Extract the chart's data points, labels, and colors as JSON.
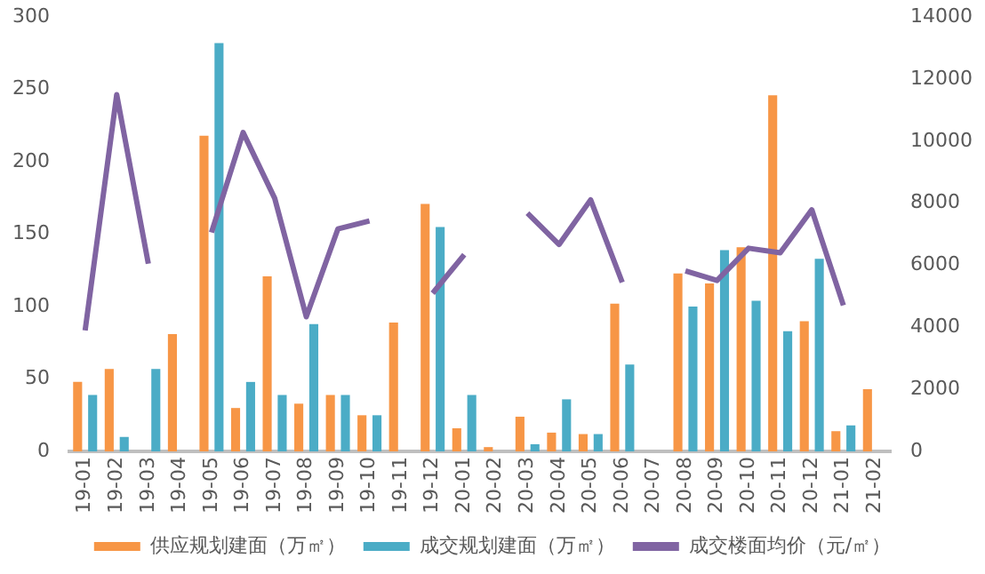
{
  "chart_data": {
    "type": "bar",
    "categories": [
      "19-01",
      "19-02",
      "19-03",
      "19-04",
      "19-05",
      "19-06",
      "19-07",
      "19-08",
      "19-09",
      "19-10",
      "19-11",
      "19-12",
      "20-01",
      "20-02",
      "20-03",
      "20-04",
      "20-05",
      "20-06",
      "20-07",
      "20-08",
      "20-09",
      "20-10",
      "20-11",
      "20-12",
      "21-01",
      "21-02"
    ],
    "series": [
      {
        "name": "供应规划建面（万㎡）",
        "color": "#f79646",
        "values": [
          48,
          57,
          0,
          81,
          218,
          30,
          121,
          33,
          39,
          25,
          89,
          171,
          16,
          3,
          24,
          13,
          12,
          102,
          0,
          123,
          116,
          141,
          246,
          90,
          14,
          43
        ]
      },
      {
        "name": "成交规划建面（万㎡）",
        "color": "#4bacc6",
        "values": [
          39,
          10,
          57,
          0,
          282,
          48,
          39,
          88,
          39,
          25,
          0,
          155,
          39,
          0,
          5,
          36,
          12,
          60,
          0,
          100,
          139,
          104,
          83,
          133,
          18,
          0
        ]
      },
      {
        "name": "成交楼面均价（元/㎡）",
        "type": "line",
        "axis": "y2",
        "color": "#8064a2",
        "values": [
          3900,
          11500,
          6050,
          null,
          7060,
          10280,
          8160,
          4340,
          7170,
          7430,
          null,
          5100,
          6340,
          null,
          7680,
          6670,
          8110,
          5450,
          null,
          5820,
          5510,
          6550,
          6400,
          7790,
          4710,
          null
        ]
      }
    ],
    "ylim": [
      0,
      300
    ],
    "yticks": [
      0,
      50,
      100,
      150,
      200,
      250,
      300
    ],
    "y2lim": [
      0,
      14000
    ],
    "y2ticks": [
      0,
      2000,
      4000,
      6000,
      8000,
      10000,
      12000,
      14000
    ],
    "grid": false,
    "legend": "bottom",
    "marker": "none"
  }
}
